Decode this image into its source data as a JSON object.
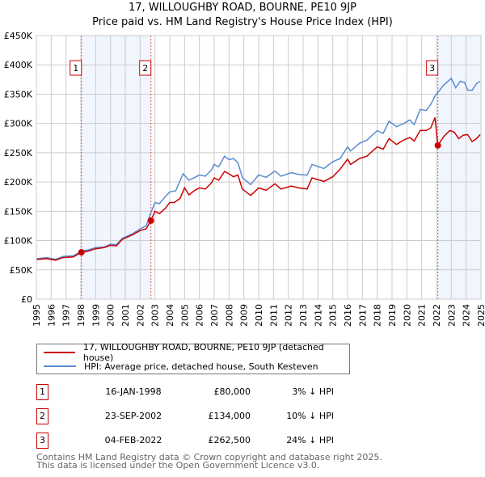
{
  "chart_data": {
    "type": "line",
    "title": "17, WILLOUGHBY ROAD, BOURNE, PE10 9JP",
    "subtitle": "Price paid vs. HM Land Registry's House Price Index (HPI)",
    "xlim": [
      1995,
      2025
    ],
    "ylim": [
      0,
      450000
    ],
    "x_ticks": [
      "1995",
      "1996",
      "1997",
      "1998",
      "1999",
      "2000",
      "2001",
      "2002",
      "2003",
      "2004",
      "2005",
      "2006",
      "2007",
      "2008",
      "2009",
      "2010",
      "2011",
      "2012",
      "2013",
      "2014",
      "2015",
      "2016",
      "2017",
      "2018",
      "2019",
      "2020",
      "2021",
      "2022",
      "2023",
      "2024",
      "2025"
    ],
    "y_ticks": [
      {
        "value": 0,
        "label": "£0"
      },
      {
        "value": 50000,
        "label": "£50K"
      },
      {
        "value": 100000,
        "label": "£100K"
      },
      {
        "value": 150000,
        "label": "£150K"
      },
      {
        "value": 200000,
        "label": "£200K"
      },
      {
        "value": 250000,
        "label": "£250K"
      },
      {
        "value": 300000,
        "label": "£300K"
      },
      {
        "value": 350000,
        "label": "£350K"
      },
      {
        "value": 400000,
        "label": "£400K"
      },
      {
        "value": 450000,
        "label": "£450K"
      }
    ],
    "grid": true,
    "series": [
      {
        "name": "17, WILLOUGHBY ROAD, BOURNE, PE10 9JP (detached house)",
        "color": "#cc0000",
        "points": [
          [
            1995,
            67600
          ],
          [
            1995.7,
            69000
          ],
          [
            1996.3,
            66500
          ],
          [
            1996.8,
            71000
          ],
          [
            1997.5,
            72000
          ],
          [
            1998.04,
            80000
          ],
          [
            1998.5,
            82000
          ],
          [
            1999,
            86000
          ],
          [
            1999.6,
            88000
          ],
          [
            2000,
            92000
          ],
          [
            2000.4,
            91000
          ],
          [
            2000.8,
            102000
          ],
          [
            2001.5,
            110000
          ],
          [
            2002,
            117000
          ],
          [
            2002.4,
            120000
          ],
          [
            2002.73,
            134000
          ],
          [
            2003,
            150000
          ],
          [
            2003.3,
            146000
          ],
          [
            2003.7,
            155000
          ],
          [
            2004,
            165000
          ],
          [
            2004.3,
            165000
          ],
          [
            2004.7,
            172000
          ],
          [
            2005,
            190000
          ],
          [
            2005.3,
            178000
          ],
          [
            2005.7,
            186000
          ],
          [
            2006,
            190000
          ],
          [
            2006.4,
            188000
          ],
          [
            2006.8,
            198000
          ],
          [
            2007,
            207000
          ],
          [
            2007.3,
            203000
          ],
          [
            2007.7,
            218000
          ],
          [
            2008,
            214000
          ],
          [
            2008.3,
            209000
          ],
          [
            2008.6,
            212000
          ],
          [
            2008.9,
            188000
          ],
          [
            2009.46,
            177000
          ],
          [
            2010,
            190000
          ],
          [
            2010.5,
            186000
          ],
          [
            2011.1,
            197000
          ],
          [
            2011.5,
            188000
          ],
          [
            2012.2,
            193000
          ],
          [
            2012.7,
            190000
          ],
          [
            2013.27,
            188000
          ],
          [
            2013.6,
            207000
          ],
          [
            2014.4,
            201000
          ],
          [
            2015,
            209000
          ],
          [
            2015.5,
            222000
          ],
          [
            2016,
            239000
          ],
          [
            2016.2,
            230000
          ],
          [
            2016.8,
            240000
          ],
          [
            2017.3,
            244000
          ],
          [
            2018,
            260000
          ],
          [
            2018.4,
            256000
          ],
          [
            2018.8,
            274000
          ],
          [
            2019.3,
            264000
          ],
          [
            2019.8,
            272000
          ],
          [
            2020.2,
            276000
          ],
          [
            2020.5,
            270000
          ],
          [
            2020.9,
            288000
          ],
          [
            2021.3,
            288000
          ],
          [
            2021.6,
            292000
          ],
          [
            2021.9,
            310000
          ],
          [
            2022.09,
            262500
          ],
          [
            2022.5,
            278000
          ],
          [
            2022.9,
            288000
          ],
          [
            2023.2,
            285000
          ],
          [
            2023.5,
            274000
          ],
          [
            2023.8,
            280000
          ],
          [
            2024.1,
            281000
          ],
          [
            2024.4,
            269000
          ],
          [
            2024.7,
            274000
          ],
          [
            2024.95,
            281000
          ]
        ]
      },
      {
        "name": "HPI: Average price, detached house, South Kesteven",
        "color": "#5b8bd0",
        "points": [
          [
            1995,
            69000
          ],
          [
            1995.7,
            71000
          ],
          [
            1996.3,
            68000
          ],
          [
            1996.8,
            73000
          ],
          [
            1997.5,
            74000
          ],
          [
            1998.04,
            82000
          ],
          [
            1998.5,
            84000
          ],
          [
            1999,
            88000
          ],
          [
            1999.6,
            89000
          ],
          [
            2000,
            94000
          ],
          [
            2000.4,
            93000
          ],
          [
            2000.8,
            104000
          ],
          [
            2001.5,
            112000
          ],
          [
            2002,
            120000
          ],
          [
            2002.4,
            125000
          ],
          [
            2002.73,
            148000
          ],
          [
            2003,
            165000
          ],
          [
            2003.3,
            163000
          ],
          [
            2003.7,
            175000
          ],
          [
            2004,
            183000
          ],
          [
            2004.4,
            185000
          ],
          [
            2004.9,
            214000
          ],
          [
            2005.3,
            203000
          ],
          [
            2005.7,
            208000
          ],
          [
            2006,
            212000
          ],
          [
            2006.4,
            210000
          ],
          [
            2006.8,
            220000
          ],
          [
            2007,
            230000
          ],
          [
            2007.3,
            226000
          ],
          [
            2007.7,
            244000
          ],
          [
            2008,
            238000
          ],
          [
            2008.3,
            240000
          ],
          [
            2008.6,
            233000
          ],
          [
            2008.91,
            207000
          ],
          [
            2009.46,
            195600
          ],
          [
            2010,
            212000
          ],
          [
            2010.5,
            208000
          ],
          [
            2011.1,
            218600
          ],
          [
            2011.5,
            210000
          ],
          [
            2012.2,
            216000
          ],
          [
            2012.7,
            213000
          ],
          [
            2013.27,
            211700
          ],
          [
            2013.6,
            230000
          ],
          [
            2014.4,
            223000
          ],
          [
            2015,
            234700
          ],
          [
            2015.5,
            240000
          ],
          [
            2016,
            260000
          ],
          [
            2016.2,
            253000
          ],
          [
            2016.8,
            266000
          ],
          [
            2017.3,
            271500
          ],
          [
            2018,
            287600
          ],
          [
            2018.4,
            283000
          ],
          [
            2018.8,
            303700
          ],
          [
            2019.3,
            294500
          ],
          [
            2019.8,
            300000
          ],
          [
            2020.2,
            306000
          ],
          [
            2020.5,
            298000
          ],
          [
            2020.9,
            324000
          ],
          [
            2021.3,
            322000
          ],
          [
            2021.6,
            332000
          ],
          [
            2021.9,
            347000
          ],
          [
            2022.5,
            366000
          ],
          [
            2023,
            377000
          ],
          [
            2023.3,
            361000
          ],
          [
            2023.6,
            372000
          ],
          [
            2023.9,
            370000
          ],
          [
            2024.1,
            357000
          ],
          [
            2024.4,
            356600
          ],
          [
            2024.7,
            368000
          ],
          [
            2024.95,
            372000
          ]
        ]
      }
    ],
    "sales": [
      {
        "label": "1",
        "x": 1998.04,
        "price": 80000
      },
      {
        "label": "2",
        "x": 2002.73,
        "price": 134000
      },
      {
        "label": "3",
        "x": 2022.09,
        "price": 262500
      }
    ],
    "shaded_ranges": [
      [
        1998.04,
        2002.73
      ],
      [
        2022.09,
        2025
      ]
    ],
    "legend_placement": "below"
  },
  "title_line1": "17, WILLOUGHBY ROAD, BOURNE, PE10 9JP",
  "title_line2": "Price paid vs. HM Land Registry's House Price Index (HPI)",
  "legend": {
    "property": "17, WILLOUGHBY ROAD, BOURNE, PE10 9JP (detached house)",
    "hpi": "HPI: Average price, detached house, South Kesteven"
  },
  "transactions": [
    {
      "num": "1",
      "date": "16-JAN-1998",
      "price": "£80,000",
      "hpi": "3% ↓ HPI"
    },
    {
      "num": "2",
      "date": "23-SEP-2002",
      "price": "£134,000",
      "hpi": "10% ↓ HPI"
    },
    {
      "num": "3",
      "date": "04-FEB-2022",
      "price": "£262,500",
      "hpi": "24% ↓ HPI"
    }
  ],
  "footer": {
    "line1": "Contains HM Land Registry data © Crown copyright and database right 2025.",
    "line2": "This data is licensed under the Open Government Licence v3.0."
  }
}
